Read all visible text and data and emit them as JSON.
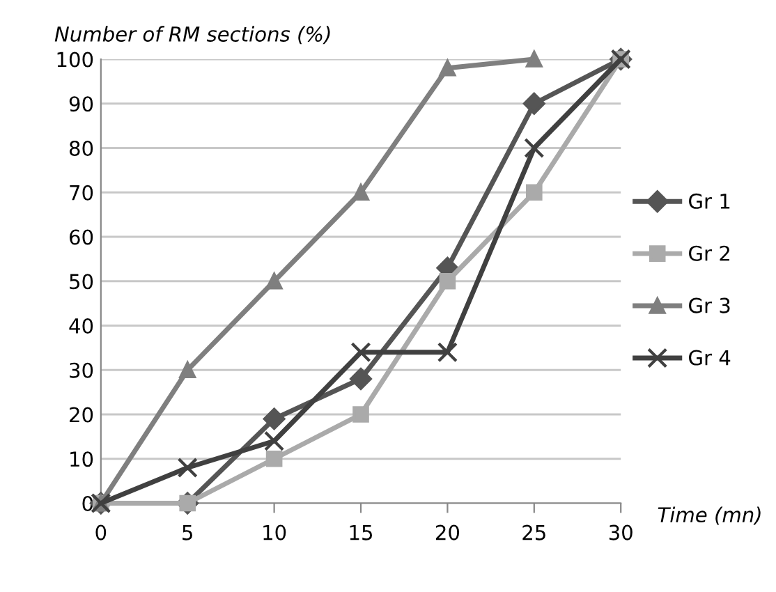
{
  "chart_data": {
    "type": "line",
    "ylabel": "Number of RM sections (%)",
    "xlabel": "Time (mn)",
    "categories": [
      "0",
      "5",
      "10",
      "15",
      "20",
      "25",
      "30"
    ],
    "series": [
      {
        "name": "Gr 1",
        "color": "#555555",
        "marker": "diamond",
        "values": [
          0,
          0,
          19,
          28,
          53,
          90,
          100
        ]
      },
      {
        "name": "Gr 2",
        "color": "#aaaaaa",
        "marker": "square",
        "values": [
          0,
          0,
          10,
          20,
          50,
          70,
          100
        ]
      },
      {
        "name": "Gr 3",
        "color": "#7f7f7f",
        "marker": "triangle",
        "values": [
          0,
          30,
          50,
          70,
          98,
          100,
          null
        ]
      },
      {
        "name": "Gr 4",
        "color": "#404040",
        "marker": "cross",
        "values": [
          0,
          8,
          14,
          34,
          34,
          80,
          100
        ]
      }
    ],
    "ylim": [
      0,
      100
    ],
    "yticks": [
      0,
      10,
      20,
      30,
      40,
      50,
      60,
      70,
      80,
      90,
      100
    ],
    "grid": "y",
    "legend": "right",
    "line_style": "solid"
  }
}
